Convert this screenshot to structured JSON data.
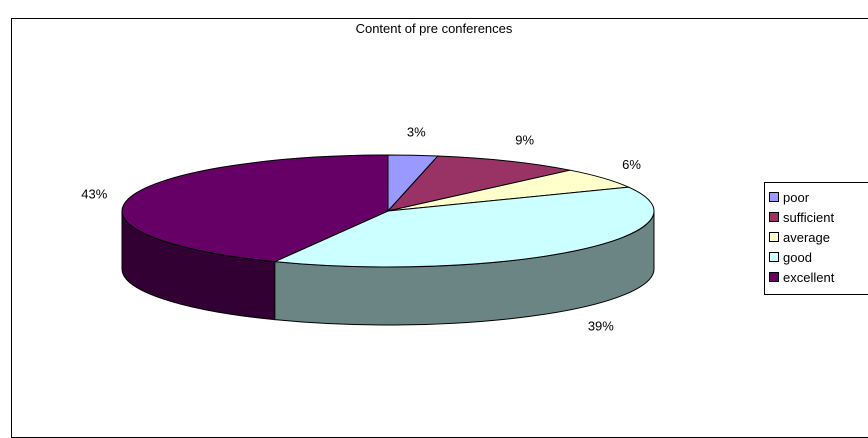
{
  "chart_data": {
    "type": "pie",
    "title": "Content of pre conferences",
    "categories": [
      "poor",
      "sufficient",
      "average",
      "good",
      "excellent"
    ],
    "values": [
      3,
      9,
      6,
      39,
      43
    ],
    "value_labels": [
      "3%",
      "9%",
      "6%",
      "39%",
      "43%"
    ],
    "colors": [
      "#9999FF",
      "#993366",
      "#FFFFCC",
      "#CCFFFF",
      "#660066"
    ],
    "side_colors": [
      "#5C5C99",
      "#5C1F3D",
      "#99997A",
      "#6B8585",
      "#330033"
    ],
    "legend_position": "right",
    "style": "3d"
  }
}
